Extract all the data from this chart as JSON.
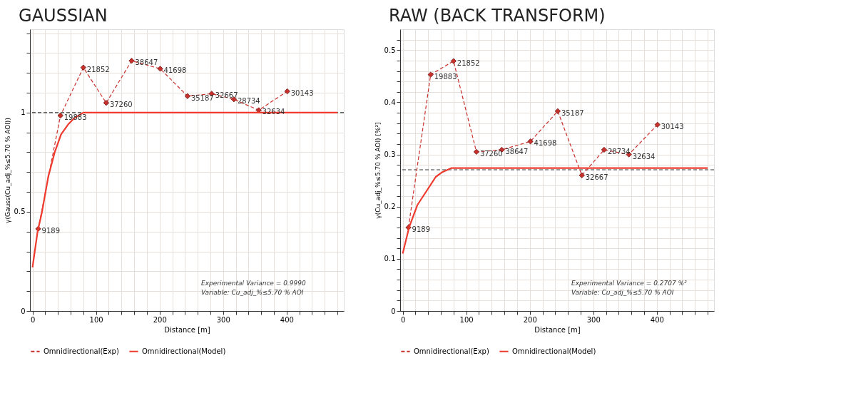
{
  "chart_data": [
    {
      "type": "line",
      "title": "GAUSSIAN",
      "xlabel": "Distance [m]",
      "ylabel": "γ(Gauss(Cu_adj_%≤5.70 % AOI))",
      "x": [
        9,
        44,
        80,
        116,
        156,
        201,
        244,
        282,
        317,
        356,
        401
      ],
      "series": [
        {
          "name": "Omnidirectional(Exp)",
          "color": "#c9302c",
          "line_style": "dashed",
          "marker": "diamond",
          "values": [
            0.414,
            0.985,
            1.227,
            1.049,
            1.261,
            1.221,
            1.083,
            1.095,
            1.067,
            1.012,
            1.107
          ]
        },
        {
          "name": "Omnidirectional(Model)",
          "color": "#ee3b2e",
          "line_style": "solid",
          "marker": "none",
          "x": [
            0,
            8,
            15,
            25,
            35,
            45,
            56,
            65,
            80,
            480
          ],
          "values": [
            0.22,
            0.4,
            0.5,
            0.68,
            0.8,
            0.89,
            0.94,
            0.97,
            1.0,
            1.0
          ]
        }
      ],
      "ref_lines": [
        {
          "axis": "y",
          "value": 1,
          "color": "#333333",
          "line_style": "dashed",
          "label": null
        }
      ],
      "annotations": [
        "Experimental Variance = 0.9990",
        "Variable: Cu_adj_%≤5.70 % AOI",
        {
          "text": "9189",
          "x": 9,
          "y": 0.414
        },
        {
          "text": "19883",
          "x": 44,
          "y": 0.985
        },
        {
          "text": "21852",
          "x": 80,
          "y": 1.227
        },
        {
          "text": "37260",
          "x": 116,
          "y": 1.049
        },
        {
          "text": "38647",
          "x": 156,
          "y": 1.261
        },
        {
          "text": "41698",
          "x": 201,
          "y": 1.221
        },
        {
          "text": "35187",
          "x": 244,
          "y": 1.083
        },
        {
          "text": "32667",
          "x": 282,
          "y": 1.095
        },
        {
          "text": "28734",
          "x": 317,
          "y": 1.067
        },
        {
          "text": "32634",
          "x": 356,
          "y": 1.012
        },
        {
          "text": "30143",
          "x": 401,
          "y": 1.107
        }
      ],
      "xlim": [
        -4,
        490
      ],
      "ylim": [
        0,
        1.42
      ],
      "xticks": [
        0,
        {
          "value": 20,
          "label": null
        },
        {
          "value": 40,
          "label": null
        },
        {
          "value": 60,
          "label": null
        },
        {
          "value": 80,
          "label": null
        },
        100,
        {
          "value": 120,
          "label": null
        },
        {
          "value": 140,
          "label": null
        },
        {
          "value": 160,
          "label": null
        },
        {
          "value": 180,
          "label": null
        },
        200,
        {
          "value": 220,
          "label": null
        },
        {
          "value": 240,
          "label": null
        },
        {
          "value": 260,
          "label": null
        },
        {
          "value": 280,
          "label": null
        },
        300,
        {
          "value": 320,
          "label": null
        },
        {
          "value": 340,
          "label": null
        },
        {
          "value": 360,
          "label": null
        },
        {
          "value": 380,
          "label": null
        },
        400,
        {
          "value": 420,
          "label": null
        },
        {
          "value": 440,
          "label": null
        },
        {
          "value": 460,
          "label": null
        },
        {
          "value": 480,
          "label": null
        }
      ],
      "yticks": [
        0,
        {
          "value": 0.1,
          "label": null
        },
        {
          "value": 0.2,
          "label": null
        },
        {
          "value": 0.3,
          "label": null
        },
        {
          "value": 0.4,
          "label": null
        },
        0.5,
        {
          "value": 0.6,
          "label": null
        },
        {
          "value": 0.7,
          "label": null
        },
        {
          "value": 0.8,
          "label": null
        },
        {
          "value": 0.9,
          "label": null
        },
        1,
        {
          "value": 1.1,
          "label": null
        },
        {
          "value": 1.2,
          "label": null
        },
        {
          "value": 1.3,
          "label": null
        },
        {
          "value": 1.4,
          "label": null
        }
      ],
      "grid": true,
      "legend": "bottom"
    },
    {
      "type": "line",
      "title": "RAW (BACK TRANSFORM)",
      "xlabel": "Distance [m]",
      "ylabel": "γ(Cu_adj_%≤5.70 % AOI) [%²]",
      "x": [
        9,
        44,
        80,
        116,
        156,
        201,
        244,
        282,
        317,
        356,
        401
      ],
      "series": [
        {
          "name": "Omnidirectional(Exp)",
          "color": "#c9302c",
          "line_style": "dashed",
          "marker": "diamond",
          "values": [
            0.16,
            0.453,
            0.479,
            0.305,
            0.309,
            0.325,
            0.383,
            0.26,
            0.309,
            0.3,
            0.357
          ]
        },
        {
          "name": "Omnidirectional(Model)",
          "color": "#ee3b2e",
          "line_style": "solid",
          "marker": "none",
          "x": [
            0,
            10,
            23,
            37,
            52,
            62,
            77,
            480
          ],
          "values": [
            0.11,
            0.16,
            0.203,
            0.229,
            0.257,
            0.266,
            0.274,
            0.274
          ]
        }
      ],
      "ref_lines": [
        {
          "axis": "y",
          "value": 0.2707,
          "color": "#333333",
          "line_style": "dashed",
          "label": null
        }
      ],
      "annotations": [
        "Experimental Variance = 0.2707 %²",
        "Variable: Cu_adj_%≤5.70 % AOI",
        {
          "text": "9189",
          "x": 9,
          "y": 0.16
        },
        {
          "text": "19883",
          "x": 44,
          "y": 0.453
        },
        {
          "text": "21852",
          "x": 80,
          "y": 0.479
        },
        {
          "text": "37260",
          "x": 116,
          "y": 0.305
        },
        {
          "text": "38647",
          "x": 156,
          "y": 0.309
        },
        {
          "text": "41698",
          "x": 201,
          "y": 0.325
        },
        {
          "text": "35187",
          "x": 244,
          "y": 0.383
        },
        {
          "text": "32667",
          "x": 282,
          "y": 0.26
        },
        {
          "text": "28734",
          "x": 317,
          "y": 0.309
        },
        {
          "text": "32634",
          "x": 356,
          "y": 0.3
        },
        {
          "text": "30143",
          "x": 401,
          "y": 0.357
        }
      ],
      "xlim": [
        -4,
        490
      ],
      "ylim": [
        0,
        0.54
      ],
      "xticks": [
        0,
        {
          "value": 20,
          "label": null
        },
        {
          "value": 40,
          "label": null
        },
        {
          "value": 60,
          "label": null
        },
        {
          "value": 80,
          "label": null
        },
        100,
        {
          "value": 120,
          "label": null
        },
        {
          "value": 140,
          "label": null
        },
        {
          "value": 160,
          "label": null
        },
        {
          "value": 180,
          "label": null
        },
        200,
        {
          "value": 220,
          "label": null
        },
        {
          "value": 240,
          "label": null
        },
        {
          "value": 260,
          "label": null
        },
        {
          "value": 280,
          "label": null
        },
        300,
        {
          "value": 320,
          "label": null
        },
        {
          "value": 340,
          "label": null
        },
        {
          "value": 360,
          "label": null
        },
        {
          "value": 380,
          "label": null
        },
        400,
        {
          "value": 420,
          "label": null
        },
        {
          "value": 440,
          "label": null
        },
        {
          "value": 460,
          "label": null
        },
        {
          "value": 480,
          "label": null
        }
      ],
      "yticks": [
        0,
        {
          "value": 0.02,
          "label": null
        },
        {
          "value": 0.04,
          "label": null
        },
        {
          "value": 0.06,
          "label": null
        },
        {
          "value": 0.08,
          "label": null
        },
        0.1,
        {
          "value": 0.12,
          "label": null
        },
        {
          "value": 0.14,
          "label": null
        },
        {
          "value": 0.16,
          "label": null
        },
        {
          "value": 0.18,
          "label": null
        },
        0.2,
        {
          "value": 0.22,
          "label": null
        },
        {
          "value": 0.24,
          "label": null
        },
        {
          "value": 0.26,
          "label": null
        },
        {
          "value": 0.28,
          "label": null
        },
        0.3,
        {
          "value": 0.32,
          "label": null
        },
        {
          "value": 0.34,
          "label": null
        },
        {
          "value": 0.36,
          "label": null
        },
        {
          "value": 0.38,
          "label": null
        },
        0.4,
        {
          "value": 0.42,
          "label": null
        },
        {
          "value": 0.44,
          "label": null
        },
        {
          "value": 0.46,
          "label": null
        },
        {
          "value": 0.48,
          "label": null
        },
        0.5,
        {
          "value": 0.52,
          "label": null
        }
      ],
      "grid": true,
      "legend": "bottom"
    }
  ]
}
